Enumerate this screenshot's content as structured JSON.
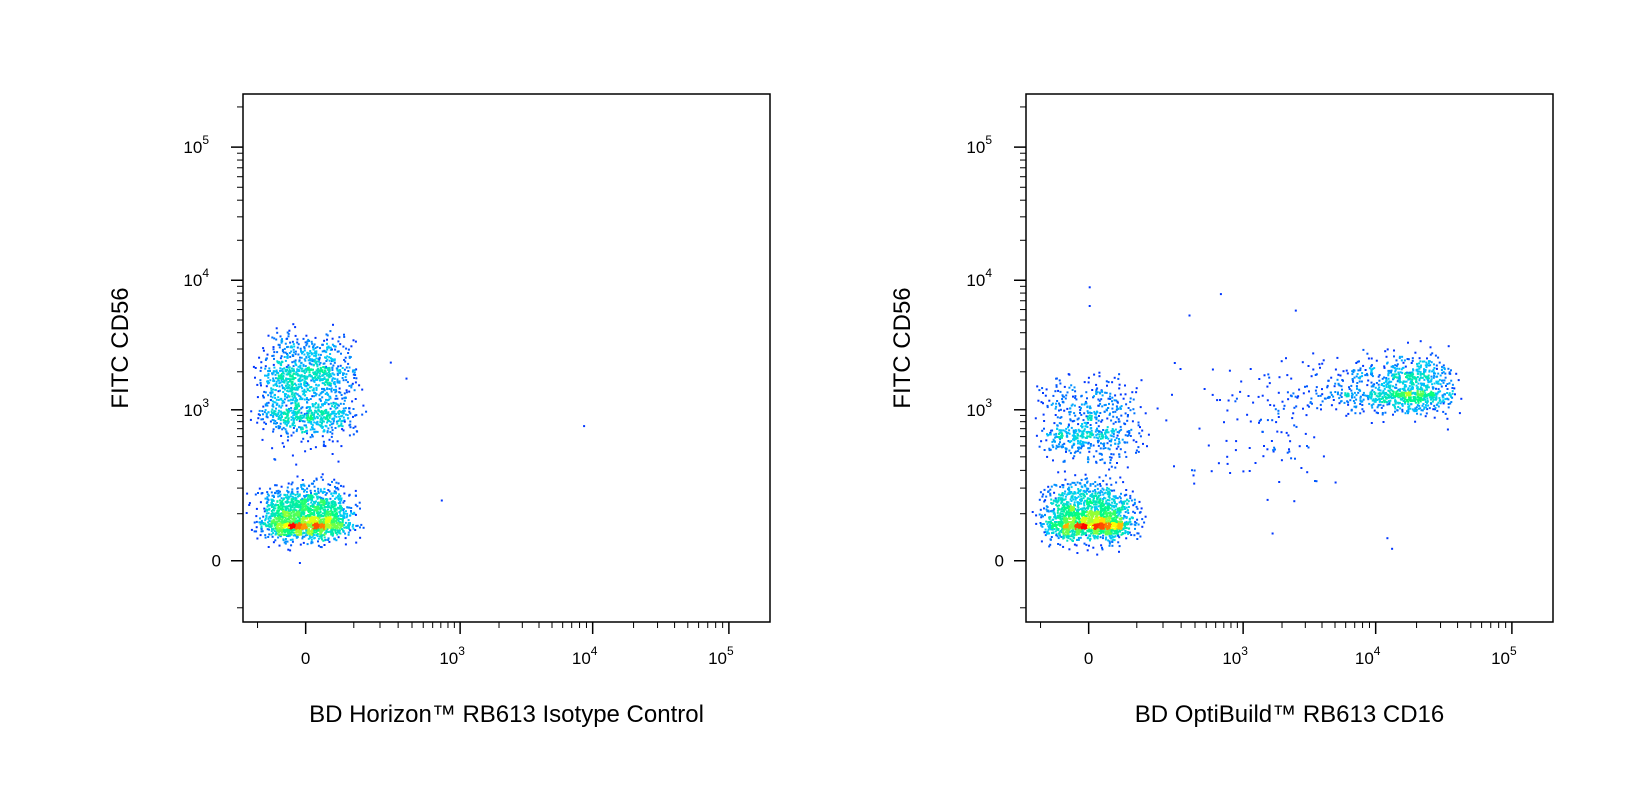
{
  "chart_data": [
    {
      "type": "scatter",
      "style": "density-dot-plot",
      "xlabel": "BD Horizon™ RB613 Isotype Control",
      "ylabel": "FITC CD56",
      "scale": "biexponential",
      "xlim": [
        -150,
        200000
      ],
      "ylim": [
        -150,
        250000
      ],
      "x_ticks": [
        {
          "value": 0,
          "base": "0",
          "exp": ""
        },
        {
          "value": 1000,
          "base": "10",
          "exp": "3"
        },
        {
          "value": 10000,
          "base": "10",
          "exp": "4"
        },
        {
          "value": 100000,
          "base": "10",
          "exp": "5"
        }
      ],
      "y_ticks": [
        {
          "value": 0,
          "base": "0",
          "exp": ""
        },
        {
          "value": 1000,
          "base": "10",
          "exp": "3"
        },
        {
          "value": 10000,
          "base": "10",
          "exp": "4"
        },
        {
          "value": 100000,
          "base": "10",
          "exp": "5"
        }
      ],
      "color_scale": [
        "#0000ff",
        "#00c8ff",
        "#00ff80",
        "#ffff00",
        "#ff0000"
      ],
      "populations": [
        {
          "x_center": 0,
          "y_center": 80,
          "x_spread": 40,
          "y_spread": 60,
          "count": 1800
        },
        {
          "x_center": 0,
          "y_center": 1000,
          "x_spread": 45,
          "y_spread": 600,
          "count": 900
        },
        {
          "x_center": 0,
          "y_center": 2200,
          "x_spread": 40,
          "y_spread": 900,
          "count": 500
        }
      ],
      "outliers": [
        {
          "x": 8500,
          "y": 750
        },
        {
          "x": 700,
          "y": 150
        },
        {
          "x": 350,
          "y": 1800
        },
        {
          "x": 250,
          "y": 2400
        }
      ],
      "grid": false,
      "legend": "none"
    },
    {
      "type": "scatter",
      "style": "density-dot-plot",
      "xlabel": "BD OptiBuild™ RB613 CD16",
      "ylabel": "FITC CD56",
      "scale": "biexponential",
      "xlim": [
        -150,
        200000
      ],
      "ylim": [
        -150,
        250000
      ],
      "x_ticks": [
        {
          "value": 0,
          "base": "0",
          "exp": ""
        },
        {
          "value": 1000,
          "base": "10",
          "exp": "3"
        },
        {
          "value": 10000,
          "base": "10",
          "exp": "4"
        },
        {
          "value": 100000,
          "base": "10",
          "exp": "5"
        }
      ],
      "y_ticks": [
        {
          "value": 0,
          "base": "0",
          "exp": ""
        },
        {
          "value": 1000,
          "base": "10",
          "exp": "3"
        },
        {
          "value": 10000,
          "base": "10",
          "exp": "4"
        },
        {
          "value": 100000,
          "base": "10",
          "exp": "5"
        }
      ],
      "color_scale": [
        "#0000ff",
        "#00c8ff",
        "#00ff80",
        "#ffff00",
        "#ff0000"
      ],
      "populations": [
        {
          "x_center": 0,
          "y_center": 80,
          "x_spread": 40,
          "y_spread": 60,
          "count": 1800
        },
        {
          "x_center": 0,
          "y_center": 700,
          "x_spread": 45,
          "y_spread": 500,
          "count": 600
        },
        {
          "x_center": 15000,
          "y_center": 1400,
          "x_spread": 9000,
          "y_spread": 600,
          "count": 1100
        },
        {
          "x_center": 1200,
          "y_center": 500,
          "x_spread": 1500,
          "y_spread": 500,
          "count": 120
        }
      ],
      "outliers": [
        {
          "x": 0,
          "y": 9000
        },
        {
          "x": 0,
          "y": 6500
        },
        {
          "x": 650,
          "y": 8000
        },
        {
          "x": 2500,
          "y": 6000
        },
        {
          "x": 350,
          "y": 5500
        },
        {
          "x": 12000,
          "y": 40
        },
        {
          "x": 13000,
          "y": 20
        }
      ],
      "grid": false,
      "legend": "none"
    }
  ]
}
